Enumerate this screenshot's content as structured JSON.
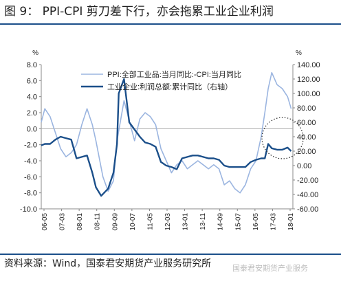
{
  "figure_title": "图 9： PPI-CPI 剪刀差下行，亦会拖累工业企业利润",
  "source_note": "资料来源：Wind，国泰君安期货产业服务研究所",
  "watermark": "国泰君安期货产业服务",
  "colors": {
    "ppi_cpi_line": "#9bb5e0",
    "profit_line": "#1b4f8a",
    "rule": "#1b4f8a",
    "highlight_circle": "#222222"
  },
  "chart_data": {
    "type": "line",
    "left_unit": "%",
    "right_unit": "%",
    "left_ylim": [
      -10,
      8
    ],
    "left_ticks": [
      "8.0",
      "6.0",
      "4.0",
      "2.0",
      "0.0",
      "-2.0",
      "-4.0",
      "-6.0",
      "-8.0",
      "-10.0"
    ],
    "right_ylim": [
      -60,
      140
    ],
    "right_ticks": [
      "140.00",
      "120.00",
      "100.00",
      "80.00",
      "60.00",
      "40.00",
      "20.00",
      "0.00",
      "-20.00",
      "-40.00",
      "-60.00"
    ],
    "x_ticks": [
      "06-05",
      "07-03",
      "08-01",
      "08-11",
      "09-09",
      "10-07",
      "11-05",
      "12-03",
      "13-01",
      "13-11",
      "14-09",
      "15-07",
      "16-05",
      "17-03",
      "18-01"
    ],
    "legend_position": "top-center",
    "annotation": "dotted circle around 2017-2018 segment",
    "series": [
      {
        "name": "PPI:全部工业品:当月同比:-CPI:当月同比",
        "axis": "left",
        "color": "#9bb5e0",
        "x": [
          2006.33,
          2006.5,
          2006.75,
          2007.0,
          2007.25,
          2007.5,
          2007.75,
          2008.0,
          2008.25,
          2008.5,
          2008.75,
          2008.92,
          2009.25,
          2009.5,
          2009.75,
          2009.92,
          2010.25,
          2010.5,
          2010.75,
          2011.0,
          2011.25,
          2011.5,
          2011.75,
          2012.0,
          2012.25,
          2012.5,
          2012.75,
          2013.0,
          2013.25,
          2013.5,
          2013.75,
          2014.0,
          2014.25,
          2014.5,
          2014.75,
          2015.0,
          2015.25,
          2015.5,
          2015.75,
          2016.0,
          2016.25,
          2016.5,
          2016.75,
          2016.92,
          2017.08,
          2017.25,
          2017.5,
          2017.75,
          2018.0,
          2018.17
        ],
        "values": [
          0.8,
          2.5,
          1.5,
          -0.5,
          -2.5,
          -3.5,
          -3.0,
          -2.0,
          0.5,
          2.5,
          0.5,
          -1.5,
          -6.0,
          -7.8,
          -6.5,
          -1.5,
          3.5,
          1.0,
          -1.5,
          1.2,
          2.0,
          1.5,
          0.5,
          -2.5,
          -4.0,
          -5.5,
          -4.5,
          -4.0,
          -5.0,
          -4.5,
          -4.0,
          -4.5,
          -5.0,
          -4.5,
          -5.0,
          -7.0,
          -6.5,
          -7.5,
          -8.0,
          -7.0,
          -5.0,
          -4.0,
          -1.0,
          2.0,
          5.0,
          7.0,
          5.5,
          5.0,
          4.0,
          2.5
        ]
      },
      {
        "name": "工业企业:利润总额:累计同比（右轴）",
        "axis": "right",
        "color": "#1b4f8a",
        "x": [
          2006.33,
          2006.5,
          2006.75,
          2007.0,
          2007.25,
          2007.5,
          2007.75,
          2008.0,
          2008.25,
          2008.5,
          2008.75,
          2008.92,
          2009.17,
          2009.5,
          2009.75,
          2009.92,
          2010.0,
          2010.25,
          2010.5,
          2010.75,
          2011.0,
          2011.25,
          2011.5,
          2011.75,
          2012.0,
          2012.25,
          2012.5,
          2012.75,
          2013.0,
          2013.25,
          2013.5,
          2013.75,
          2014.0,
          2014.25,
          2014.5,
          2014.75,
          2015.0,
          2015.25,
          2015.5,
          2015.75,
          2016.0,
          2016.25,
          2016.5,
          2016.75,
          2016.92,
          2017.08,
          2017.25,
          2017.5,
          2017.75,
          2018.0,
          2018.17
        ],
        "values": [
          28,
          30,
          30,
          36,
          40,
          38,
          36,
          10,
          12,
          14,
          -10,
          -30,
          -42,
          -32,
          -10,
          30,
          100,
          120,
          60,
          50,
          40,
          32,
          30,
          26,
          5,
          0,
          -2,
          -5,
          10,
          12,
          14,
          14,
          12,
          10,
          10,
          8,
          0,
          -2,
          -2,
          -2,
          -2,
          5,
          8,
          10,
          10,
          30,
          24,
          22,
          22,
          25,
          20
        ]
      }
    ]
  }
}
